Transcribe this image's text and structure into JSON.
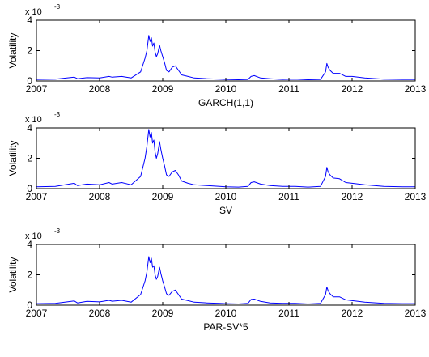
{
  "colors": {
    "line": "#0000ff",
    "axis": "#000000",
    "background": "#ffffff"
  },
  "chart_data": [
    {
      "type": "line",
      "title": "",
      "xlabel": "GARCH(1,1)",
      "ylabel": "Volatility",
      "exponent_label": "x 10",
      "exponent_power": "-3",
      "xlim": [
        2007,
        2013
      ],
      "ylim": [
        0,
        4
      ],
      "xticks": [
        "2007",
        "2008",
        "2009",
        "2010",
        "2011",
        "2012",
        "2013"
      ],
      "yticks": [
        "0",
        "2",
        "4"
      ],
      "grid": false,
      "series": [
        {
          "x": [
            2007.0,
            2007.3,
            2007.6,
            2007.65,
            2007.8,
            2008.0,
            2008.15,
            2008.2,
            2008.35,
            2008.5,
            2008.65,
            2008.72,
            2008.75,
            2008.78,
            2008.8,
            2008.82,
            2008.84,
            2008.86,
            2008.88,
            2008.9,
            2008.92,
            2008.95,
            2008.97,
            2009.0,
            2009.03,
            2009.06,
            2009.1,
            2009.15,
            2009.2,
            2009.25,
            2009.3,
            2009.4,
            2009.5,
            2009.7,
            2009.9,
            2010.0,
            2010.2,
            2010.35,
            2010.4,
            2010.45,
            2010.55,
            2010.7,
            2010.9,
            2011.1,
            2011.3,
            2011.5,
            2011.58,
            2011.6,
            2011.62,
            2011.65,
            2011.7,
            2011.8,
            2011.9,
            2012.0,
            2012.2,
            2012.5,
            2012.8,
            2013.0
          ],
          "values": [
            0.1,
            0.12,
            0.25,
            0.15,
            0.22,
            0.2,
            0.3,
            0.25,
            0.3,
            0.2,
            0.6,
            1.5,
            2.0,
            3.0,
            2.6,
            2.85,
            2.3,
            2.5,
            1.9,
            1.6,
            1.8,
            2.35,
            2.0,
            1.6,
            1.2,
            0.7,
            0.6,
            0.9,
            1.0,
            0.7,
            0.4,
            0.3,
            0.2,
            0.15,
            0.12,
            0.1,
            0.08,
            0.1,
            0.3,
            0.35,
            0.2,
            0.15,
            0.1,
            0.12,
            0.08,
            0.1,
            0.6,
            1.15,
            0.9,
            0.7,
            0.5,
            0.5,
            0.3,
            0.3,
            0.2,
            0.12,
            0.1,
            0.1
          ]
        }
      ]
    },
    {
      "type": "line",
      "title": "",
      "xlabel": "SV",
      "ylabel": "Volatility",
      "exponent_label": "x 10",
      "exponent_power": "-3",
      "xlim": [
        2007,
        2013
      ],
      "ylim": [
        0,
        4
      ],
      "xticks": [
        "2007",
        "2008",
        "2009",
        "2010",
        "2011",
        "2012",
        "2013"
      ],
      "yticks": [
        "0",
        "2",
        "4"
      ],
      "grid": false,
      "series": [
        {
          "x": [
            2007.0,
            2007.3,
            2007.6,
            2007.65,
            2007.8,
            2008.0,
            2008.15,
            2008.2,
            2008.35,
            2008.5,
            2008.65,
            2008.72,
            2008.75,
            2008.78,
            2008.8,
            2008.82,
            2008.84,
            2008.86,
            2008.88,
            2008.9,
            2008.92,
            2008.95,
            2008.97,
            2009.0,
            2009.03,
            2009.06,
            2009.1,
            2009.15,
            2009.2,
            2009.25,
            2009.3,
            2009.4,
            2009.5,
            2009.7,
            2009.9,
            2010.0,
            2010.2,
            2010.35,
            2010.4,
            2010.45,
            2010.55,
            2010.7,
            2010.9,
            2011.1,
            2011.3,
            2011.5,
            2011.58,
            2011.6,
            2011.62,
            2011.65,
            2011.7,
            2011.8,
            2011.9,
            2012.0,
            2012.2,
            2012.5,
            2012.8,
            2013.0
          ],
          "values": [
            0.12,
            0.15,
            0.35,
            0.2,
            0.3,
            0.25,
            0.4,
            0.3,
            0.4,
            0.25,
            0.8,
            2.0,
            2.8,
            3.9,
            3.4,
            3.7,
            3.0,
            3.2,
            2.4,
            2.0,
            2.3,
            3.1,
            2.6,
            2.0,
            1.5,
            0.9,
            0.8,
            1.1,
            1.2,
            0.9,
            0.5,
            0.35,
            0.25,
            0.2,
            0.15,
            0.12,
            0.1,
            0.15,
            0.4,
            0.45,
            0.3,
            0.2,
            0.15,
            0.15,
            0.1,
            0.15,
            0.8,
            1.4,
            1.1,
            0.9,
            0.7,
            0.65,
            0.4,
            0.35,
            0.25,
            0.15,
            0.12,
            0.12
          ]
        }
      ]
    },
    {
      "type": "line",
      "title": "",
      "xlabel": "PAR-SV*5",
      "ylabel": "Volatility",
      "exponent_label": "x 10",
      "exponent_power": "-3",
      "xlim": [
        2007,
        2013
      ],
      "ylim": [
        0,
        4
      ],
      "xticks": [
        "2007",
        "2008",
        "2009",
        "2010",
        "2011",
        "2012",
        "2013"
      ],
      "yticks": [
        "0",
        "2",
        "4"
      ],
      "grid": false,
      "series": [
        {
          "x": [
            2007.0,
            2007.3,
            2007.6,
            2007.65,
            2007.8,
            2008.0,
            2008.15,
            2008.2,
            2008.35,
            2008.5,
            2008.65,
            2008.72,
            2008.75,
            2008.78,
            2008.8,
            2008.82,
            2008.84,
            2008.86,
            2008.88,
            2008.9,
            2008.92,
            2008.95,
            2008.97,
            2009.0,
            2009.03,
            2009.06,
            2009.1,
            2009.15,
            2009.2,
            2009.25,
            2009.3,
            2009.4,
            2009.5,
            2009.7,
            2009.9,
            2010.0,
            2010.2,
            2010.35,
            2010.4,
            2010.45,
            2010.55,
            2010.7,
            2010.9,
            2011.1,
            2011.3,
            2011.5,
            2011.58,
            2011.6,
            2011.62,
            2011.65,
            2011.7,
            2011.8,
            2011.9,
            2012.0,
            2012.2,
            2012.5,
            2012.8,
            2013.0
          ],
          "values": [
            0.1,
            0.12,
            0.28,
            0.15,
            0.25,
            0.22,
            0.32,
            0.26,
            0.32,
            0.2,
            0.7,
            1.6,
            2.2,
            3.2,
            2.8,
            3.1,
            2.5,
            2.6,
            2.0,
            1.7,
            1.9,
            2.5,
            2.1,
            1.6,
            1.2,
            0.75,
            0.65,
            0.9,
            1.0,
            0.7,
            0.4,
            0.3,
            0.2,
            0.15,
            0.12,
            0.1,
            0.08,
            0.12,
            0.38,
            0.4,
            0.25,
            0.15,
            0.12,
            0.12,
            0.08,
            0.12,
            0.7,
            1.2,
            0.95,
            0.75,
            0.55,
            0.55,
            0.35,
            0.3,
            0.2,
            0.12,
            0.1,
            0.1
          ]
        }
      ]
    }
  ]
}
